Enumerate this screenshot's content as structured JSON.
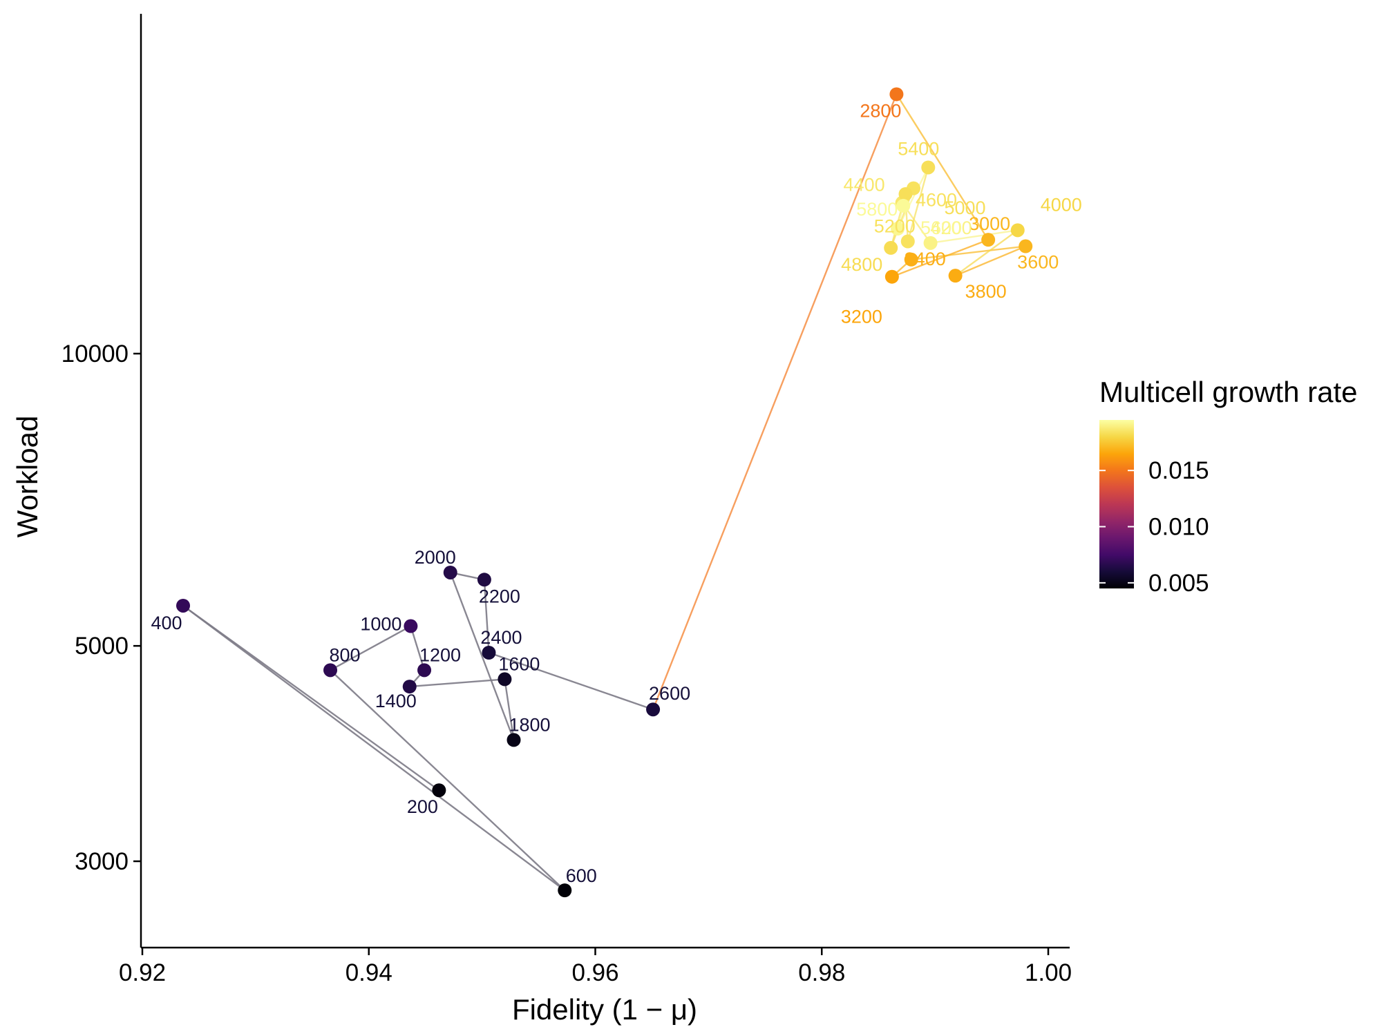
{
  "chart_data": {
    "type": "scatter",
    "title": "",
    "xlabel": "Fidelity (1 − μ)",
    "ylabel": "Workload",
    "xlim": [
      0.92,
      1.0
    ],
    "x_ticks": [
      "0.92",
      "0.94",
      "0.96",
      "0.98",
      "1.00"
    ],
    "x_tick_values": [
      0.92,
      0.94,
      0.96,
      0.98,
      1.0
    ],
    "y_scale": "log",
    "ylim": [
      2500,
      19500
    ],
    "y_ticks": [
      "3000",
      "5000",
      "10000"
    ],
    "y_tick_values": [
      3000,
      5000,
      10000
    ],
    "grid": false,
    "connected": true,
    "color_legend": {
      "title": "Multicell growth rate",
      "placement": "right",
      "colormap": "inferno",
      "range": [
        0.0045,
        0.0195
      ],
      "ticks": [
        "0.005",
        "0.010",
        "0.015"
      ],
      "tick_values": [
        0.005,
        0.01,
        0.015
      ]
    },
    "points": [
      {
        "label": "200",
        "x": 0.9462,
        "y": 3550,
        "rate": 0.0047
      },
      {
        "label": "400",
        "x": 0.9236,
        "y": 5500,
        "rate": 0.007
      },
      {
        "label": "600",
        "x": 0.9573,
        "y": 2800,
        "rate": 0.0046
      },
      {
        "label": "800",
        "x": 0.9366,
        "y": 4720,
        "rate": 0.0068
      },
      {
        "label": "1000",
        "x": 0.9437,
        "y": 5240,
        "rate": 0.0072
      },
      {
        "label": "1200",
        "x": 0.9449,
        "y": 4720,
        "rate": 0.0068
      },
      {
        "label": "1400",
        "x": 0.9436,
        "y": 4540,
        "rate": 0.0064
      },
      {
        "label": "1600",
        "x": 0.952,
        "y": 4620,
        "rate": 0.0055
      },
      {
        "label": "1800",
        "x": 0.9528,
        "y": 4000,
        "rate": 0.005
      },
      {
        "label": "2000",
        "x": 0.9472,
        "y": 5950,
        "rate": 0.0065
      },
      {
        "label": "2200",
        "x": 0.9502,
        "y": 5850,
        "rate": 0.0063
      },
      {
        "label": "2400",
        "x": 0.9506,
        "y": 4920,
        "rate": 0.006
      },
      {
        "label": "2600",
        "x": 0.9651,
        "y": 4300,
        "rate": 0.0061
      },
      {
        "label": "2800",
        "x": 0.9866,
        "y": 18500,
        "rate": 0.015
      },
      {
        "label": "3000",
        "x": 0.9947,
        "y": 13100,
        "rate": 0.017
      },
      {
        "label": "3200",
        "x": 0.9862,
        "y": 12000,
        "rate": 0.0165
      },
      {
        "label": "3400",
        "x": 0.9879,
        "y": 12500,
        "rate": 0.0168
      },
      {
        "label": "3600",
        "x": 0.998,
        "y": 12900,
        "rate": 0.017
      },
      {
        "label": "3800",
        "x": 0.9918,
        "y": 12030,
        "rate": 0.0167
      },
      {
        "label": "4000",
        "x": 0.9973,
        "y": 13400,
        "rate": 0.018
      },
      {
        "label": "4200",
        "x": 0.9896,
        "y": 13000,
        "rate": 0.019
      },
      {
        "label": "4400",
        "x": 0.9871,
        "y": 14300,
        "rate": 0.0186
      },
      {
        "label": "4600",
        "x": 0.9881,
        "y": 14800,
        "rate": 0.0184
      },
      {
        "label": "4800",
        "x": 0.9861,
        "y": 12850,
        "rate": 0.0182
      },
      {
        "label": "5000",
        "x": 0.9874,
        "y": 14600,
        "rate": 0.0183
      },
      {
        "label": "5200",
        "x": 0.9876,
        "y": 13050,
        "rate": 0.0184
      },
      {
        "label": "5400",
        "x": 0.9894,
        "y": 15550,
        "rate": 0.0183
      },
      {
        "label": "5600",
        "x": 0.9867,
        "y": 13450,
        "rate": 0.0192
      },
      {
        "label": "5800",
        "x": 0.9872,
        "y": 14200,
        "rate": 0.0193
      }
    ]
  }
}
